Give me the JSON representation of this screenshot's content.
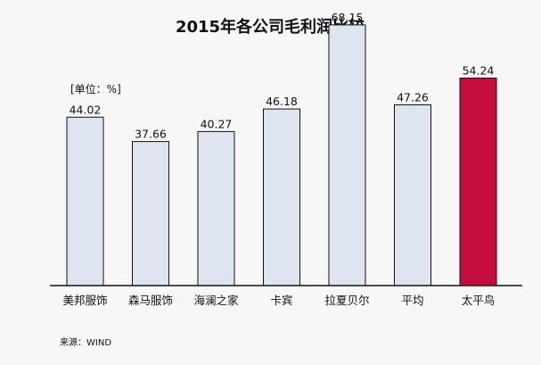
{
  "chart_data": {
    "type": "bar",
    "title": "2015年各公司毛利润比较",
    "unit_label": "[单位：%]",
    "source": "来源：WIND",
    "categories": [
      "美邦服饰",
      "森马服饰",
      "海澜之家",
      "卡宾",
      "拉夏贝尔",
      "平均",
      "太平鸟"
    ],
    "values": [
      44.02,
      37.66,
      40.27,
      46.18,
      68.15,
      47.26,
      54.24
    ],
    "value_labels": [
      "44.02",
      "37.66",
      "40.27",
      "46.18",
      "68.15",
      "47.26",
      "54.24"
    ],
    "ylim": [
      0,
      70
    ],
    "grid": false,
    "colors": {
      "default_bar": "#dfe5f0",
      "highlight_bar": "#c40d3c",
      "bar_stroke": "#111111"
    },
    "highlight_category": "太平鸟"
  }
}
